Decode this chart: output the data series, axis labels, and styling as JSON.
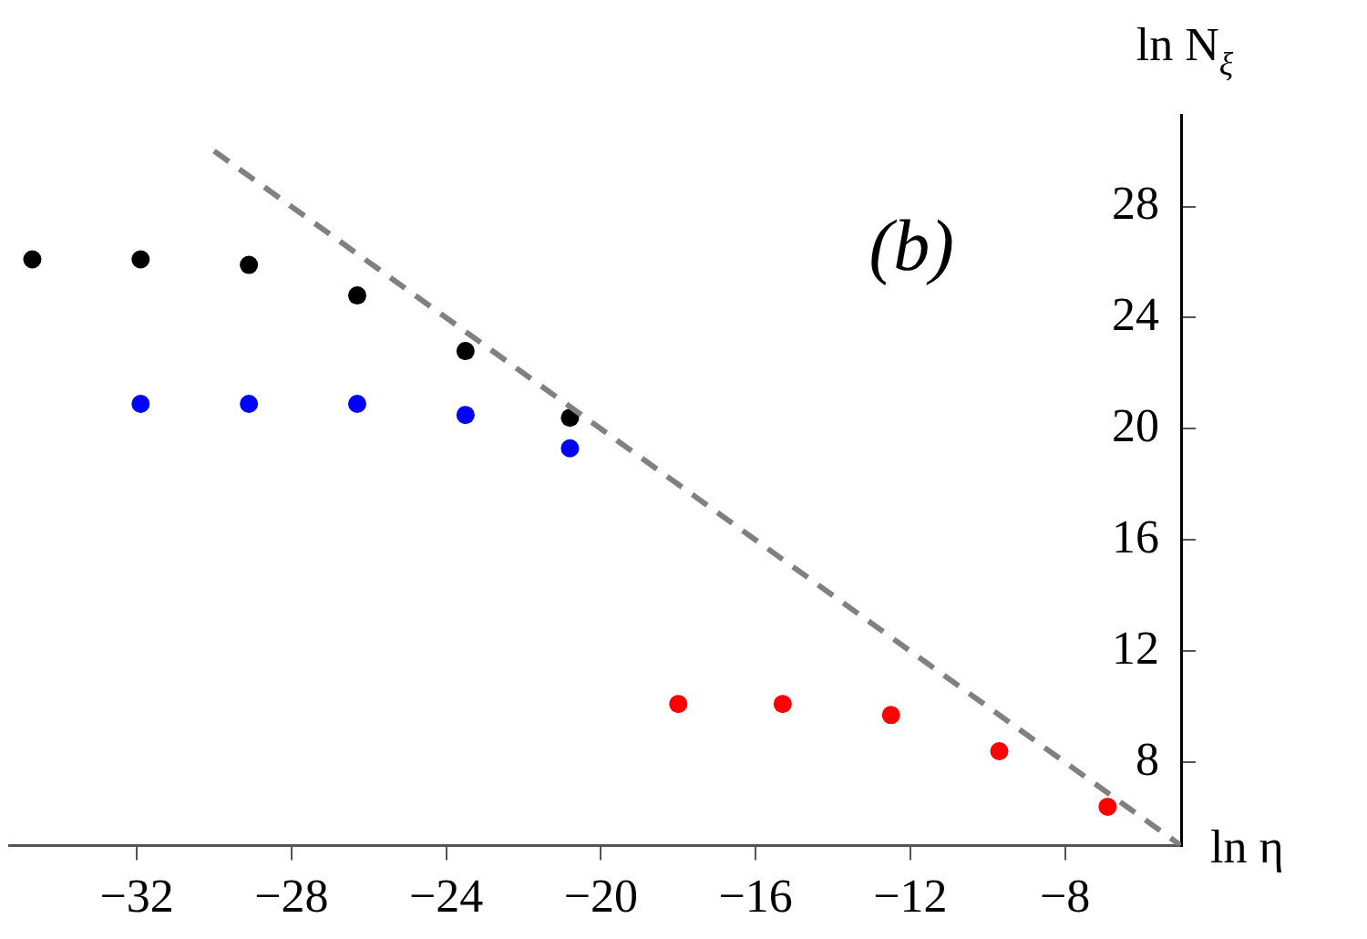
{
  "chart_data": {
    "type": "scatter",
    "xlabel": "ln η",
    "ylabel": "ln N$_{ξ}$",
    "annotations": [
      "(b)"
    ],
    "xlim": [
      -35.3,
      -5
    ],
    "ylim": [
      5,
      31.3
    ],
    "xticks": [
      -32,
      -28,
      -24,
      -20,
      -16,
      -12,
      -8
    ],
    "yticks": [
      8,
      12,
      16,
      20,
      24,
      28
    ],
    "grid": false,
    "legend": false,
    "marker": "circle",
    "series": [
      {
        "type": "line",
        "color": "#808080",
        "line_style": "dashed",
        "marker": "none",
        "x": [
          -30,
          -5
        ],
        "values": [
          30,
          5
        ]
      },
      {
        "color": "#000000",
        "x": [
          -34.7,
          -31.9,
          -29.1,
          -26.3,
          -23.5,
          -20.8
        ],
        "values": [
          26.1,
          26.1,
          25.9,
          24.8,
          22.8,
          20.4
        ]
      },
      {
        "color": "#0000ff",
        "x": [
          -31.9,
          -29.1,
          -26.3,
          -23.5,
          -20.8
        ],
        "values": [
          20.9,
          20.9,
          20.9,
          20.5,
          19.3
        ]
      },
      {
        "color": "#ff0000",
        "x": [
          -18.0,
          -15.3,
          -12.5,
          -9.7,
          -6.9
        ],
        "values": [
          10.1,
          10.1,
          9.7,
          8.4,
          6.4
        ]
      }
    ]
  }
}
